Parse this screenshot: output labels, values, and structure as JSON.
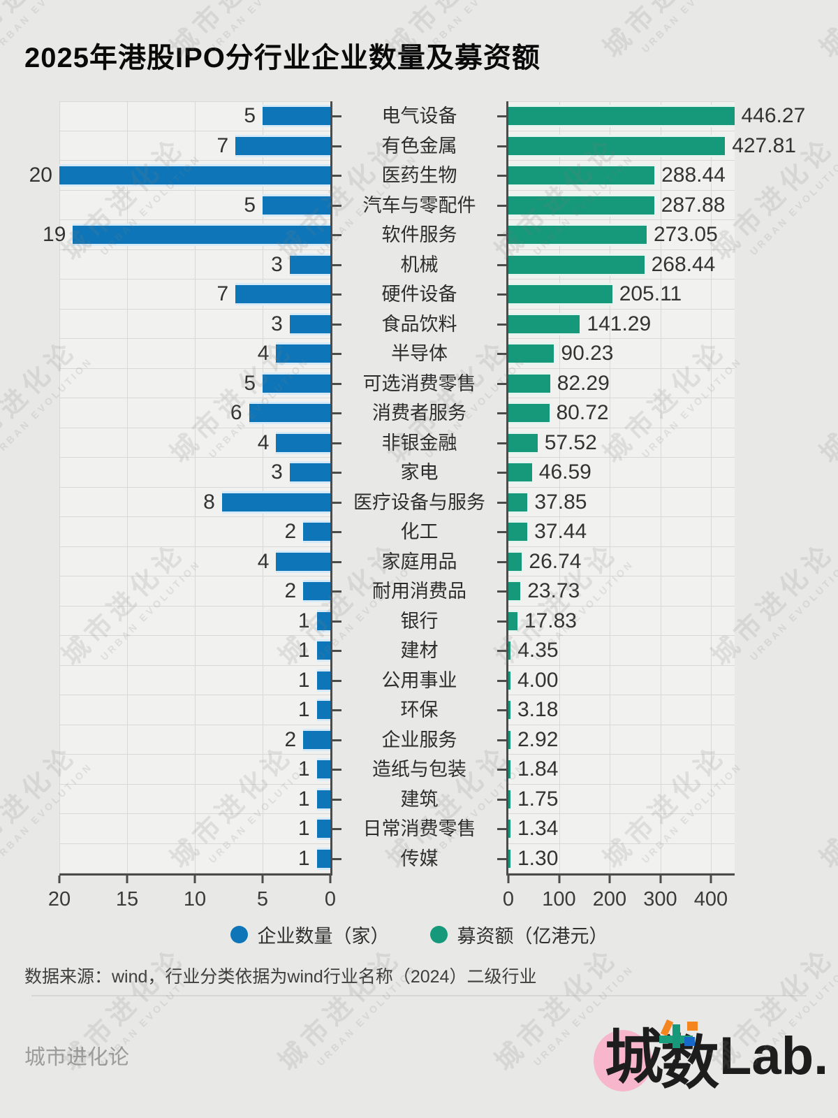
{
  "title": "2025年港股IPO分行业企业数量及募资额",
  "chart_data": {
    "type": "bar",
    "orientation": "horizontal-butterfly",
    "title": "2025年港股IPO分行业企业数量及募资额",
    "categories": [
      "电气设备",
      "有色金属",
      "医药生物",
      "汽车与零配件",
      "软件服务",
      "机械",
      "硬件设备",
      "食品饮料",
      "半导体",
      "可选消费零售",
      "消费者服务",
      "非银金融",
      "家电",
      "医疗设备与服务",
      "化工",
      "家庭用品",
      "耐用消费品",
      "银行",
      "建材",
      "公用事业",
      "环保",
      "企业服务",
      "造纸与包装",
      "建筑",
      "日常消费零售",
      "传媒"
    ],
    "series": [
      {
        "name": "企业数量（家）",
        "color": "#0e76b8",
        "side": "left",
        "values": [
          5,
          7,
          20,
          5,
          19,
          3,
          7,
          3,
          4,
          5,
          6,
          4,
          3,
          8,
          2,
          4,
          2,
          1,
          1,
          1,
          1,
          2,
          1,
          1,
          1,
          1
        ]
      },
      {
        "name": "募资额（亿港元）",
        "color": "#16997a",
        "side": "right",
        "values": [
          "446.27",
          "427.81",
          "288.44",
          "287.88",
          "273.05",
          "268.44",
          "205.11",
          "141.29",
          "90.23",
          "82.29",
          "80.72",
          "57.52",
          "46.59",
          "37.85",
          "37.44",
          "26.74",
          "23.73",
          "17.83",
          "4.35",
          "4.00",
          "3.18",
          "2.92",
          "1.84",
          "1.75",
          "1.34",
          "1.30"
        ]
      }
    ],
    "count_axis": {
      "ticks": [
        "20",
        "15",
        "10",
        "5",
        "0"
      ],
      "max": 20,
      "reversed": true
    },
    "amount_axis": {
      "ticks": [
        "0",
        "100",
        "200",
        "300",
        "400"
      ],
      "max": 447
    },
    "grid": true,
    "legend_position": "bottom"
  },
  "legend": {
    "count_label": "企业数量（家）",
    "amount_label": "募资额（亿港元）"
  },
  "source_note": "数据来源：wind，行业分类依据为wind行业名称（2024）二级行业",
  "footer": {
    "brand": "城市进化论",
    "logo": {
      "cheng": "城",
      "shu": "数",
      "lab": "Lab."
    }
  },
  "watermark": {
    "line1": "城市进化论",
    "line2": "URBAN EVOLUTION"
  },
  "colors": {
    "count_bar": "#0e76b8",
    "count_band": "#d6eaf7",
    "amount_bar": "#16997a",
    "amount_band": "#e6f4ef",
    "page_bg": "#e8e8e6",
    "plot_bg": "#f1f1ef",
    "grid": "#d8d8d6",
    "axis": "#4b4b4b",
    "logo_pink": "#f7b6cc",
    "logo_orange": "#f5851f",
    "logo_blue": "#1669c9",
    "logo_green": "#1a9e7c"
  }
}
